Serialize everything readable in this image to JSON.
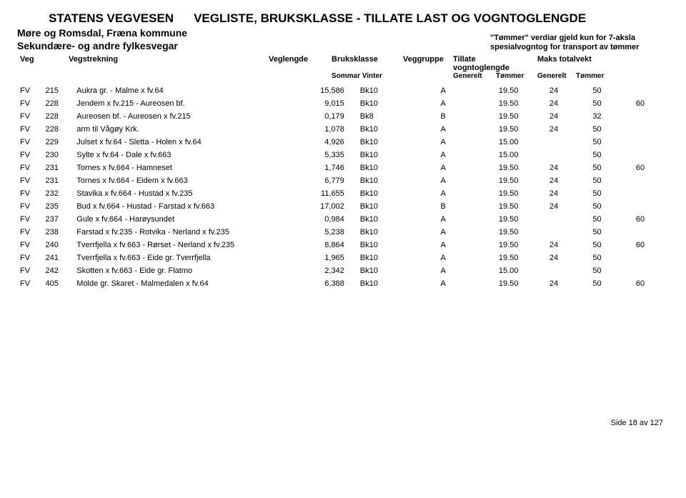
{
  "header": {
    "org": "STATENS VEGVESEN",
    "title": "VEGLISTE,  BRUKSKLASSE - TILLATE LAST OG VOGNTOGLENGDE",
    "region": "Møre og Romsdal, Fræna kommune",
    "subtype": "Sekundære- og andre fylkesvegar",
    "tommer_note_l1": "\"Tømmer\" verdiar gjeld kun for 7-aksla",
    "tommer_note_l2": "spesialvogntog for transport av tømmer"
  },
  "columns": {
    "veg": "Veg",
    "vegstrekning": "Vegstrekning",
    "veglengde": "Veglengde",
    "bruksklasse": "Bruksklasse",
    "sommar_vinter": "Sommar  Vinter",
    "veggruppe": "Veggruppe",
    "tillate": "Tillate vogntoglengde",
    "generelt1": "Generelt",
    "tommer1": "Tømmer",
    "maks": "Maks totalvekt",
    "generelt2": "Generelt",
    "tommer2": "Tømmer"
  },
  "rows": [
    {
      "c1": "FV",
      "c2": "215",
      "strek": "Aukra gr. - Malme x fv.64",
      "len": "15,586",
      "bk": "Bk10",
      "grp": "A",
      "tg": "19.50",
      "tt": "24",
      "mg": "50",
      "mt": ""
    },
    {
      "c1": "FV",
      "c2": "228",
      "strek": "Jendem x fv.215 - Aureosen bf.",
      "len": "9,015",
      "bk": "Bk10",
      "grp": "A",
      "tg": "19.50",
      "tt": "24",
      "mg": "50",
      "mt": "60"
    },
    {
      "c1": "FV",
      "c2": "228",
      "strek": "Aureosen bf. - Aureosen x fv.215",
      "len": "0,179",
      "bk": "Bk8",
      "grp": "B",
      "tg": "19.50",
      "tt": "24",
      "mg": "32",
      "mt": ""
    },
    {
      "c1": "FV",
      "c2": "228",
      "strek": "arm til Vågøy Krk.",
      "len": "1,078",
      "bk": "Bk10",
      "grp": "A",
      "tg": "19.50",
      "tt": "24",
      "mg": "50",
      "mt": ""
    },
    {
      "c1": "FV",
      "c2": "229",
      "strek": "Julset x fv.64 - Sletta - Holen x fv.64",
      "len": "4,926",
      "bk": "Bk10",
      "grp": "A",
      "tg": "15.00",
      "tt": "",
      "mg": "50",
      "mt": ""
    },
    {
      "c1": "FV",
      "c2": "230",
      "strek": "Sylte x fv.64 - Dale x fv.663",
      "len": "5,335",
      "bk": "Bk10",
      "grp": "A",
      "tg": "15.00",
      "tt": "",
      "mg": "50",
      "mt": ""
    },
    {
      "c1": "FV",
      "c2": "231",
      "strek": "Tornes x fv.664 - Hamneset",
      "len": "1,746",
      "bk": "Bk10",
      "grp": "A",
      "tg": "19.50",
      "tt": "24",
      "mg": "50",
      "mt": "60"
    },
    {
      "c1": "FV",
      "c2": "231",
      "strek": "Tornes x fv.664 - Eidem x fv.663",
      "len": "6,779",
      "bk": "Bk10",
      "grp": "A",
      "tg": "19.50",
      "tt": "24",
      "mg": "50",
      "mt": ""
    },
    {
      "c1": "FV",
      "c2": "232",
      "strek": "Stavika x fv.664 - Hustad x fv.235",
      "len": "11,655",
      "bk": "Bk10",
      "grp": "A",
      "tg": "19.50",
      "tt": "24",
      "mg": "50",
      "mt": ""
    },
    {
      "c1": "FV",
      "c2": "235",
      "strek": "Bud x fv.664 - Hustad - Farstad x fv.663",
      "len": "17,002",
      "bk": "Bk10",
      "grp": "B",
      "tg": "19.50",
      "tt": "24",
      "mg": "50",
      "mt": ""
    },
    {
      "c1": "FV",
      "c2": "237",
      "strek": "Gule x fv.664 - Harøysundet",
      "len": "0,984",
      "bk": "Bk10",
      "grp": "A",
      "tg": "19.50",
      "tt": "",
      "mg": "50",
      "mt": "60"
    },
    {
      "c1": "FV",
      "c2": "238",
      "strek": "Farstad x fv.235 - Rotvika - Nerland x fv.235",
      "len": "5,238",
      "bk": "Bk10",
      "grp": "A",
      "tg": "19.50",
      "tt": "",
      "mg": "50",
      "mt": ""
    },
    {
      "c1": "FV",
      "c2": "240",
      "strek": "Tverrfjella x fv.663 - Rørset - Nerland x fv.235",
      "len": "8,864",
      "bk": "Bk10",
      "grp": "A",
      "tg": "19.50",
      "tt": "24",
      "mg": "50",
      "mt": "60"
    },
    {
      "c1": "FV",
      "c2": "241",
      "strek": "Tverrfjella x fv.663 - Eide gr. Tverrfjella",
      "len": "1,965",
      "bk": "Bk10",
      "grp": "A",
      "tg": "19.50",
      "tt": "24",
      "mg": "50",
      "mt": ""
    },
    {
      "c1": "FV",
      "c2": "242",
      "strek": "Skotten x fv.663 - Eide gr. Flatmo",
      "len": "2,342",
      "bk": "Bk10",
      "grp": "A",
      "tg": "15.00",
      "tt": "",
      "mg": "50",
      "mt": ""
    },
    {
      "c1": "FV",
      "c2": "405",
      "strek": "Molde gr. Skaret - Malmedalen x fv.64",
      "len": "6,388",
      "bk": "Bk10",
      "grp": "A",
      "tg": "19.50",
      "tt": "24",
      "mg": "50",
      "mt": "60"
    }
  ],
  "footer": {
    "page": "Side 18 av 127"
  }
}
